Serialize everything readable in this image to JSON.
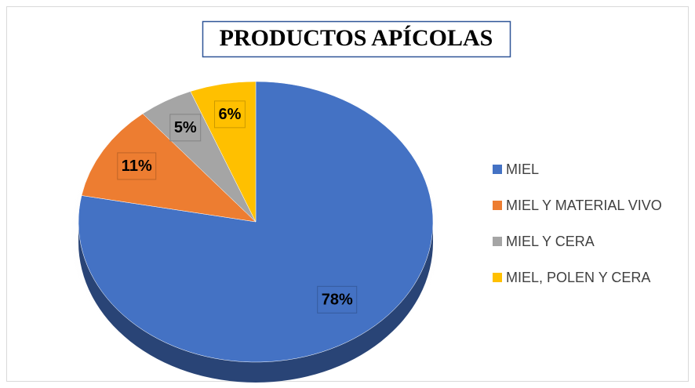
{
  "chart_data": {
    "type": "pie",
    "title": "PRODUCTOS APÍCOLAS",
    "categories": [
      "MIEL",
      "MIEL Y MATERIAL VIVO",
      "MIEL Y CERA",
      "MIEL, POLEN Y CERA"
    ],
    "values": [
      78,
      11,
      5,
      6
    ],
    "value_labels": [
      "78%",
      "11%",
      "5%",
      "6%"
    ],
    "colors": [
      "#4472c4",
      "#ed7d31",
      "#a5a5a5",
      "#ffc000"
    ],
    "legend": "right"
  }
}
